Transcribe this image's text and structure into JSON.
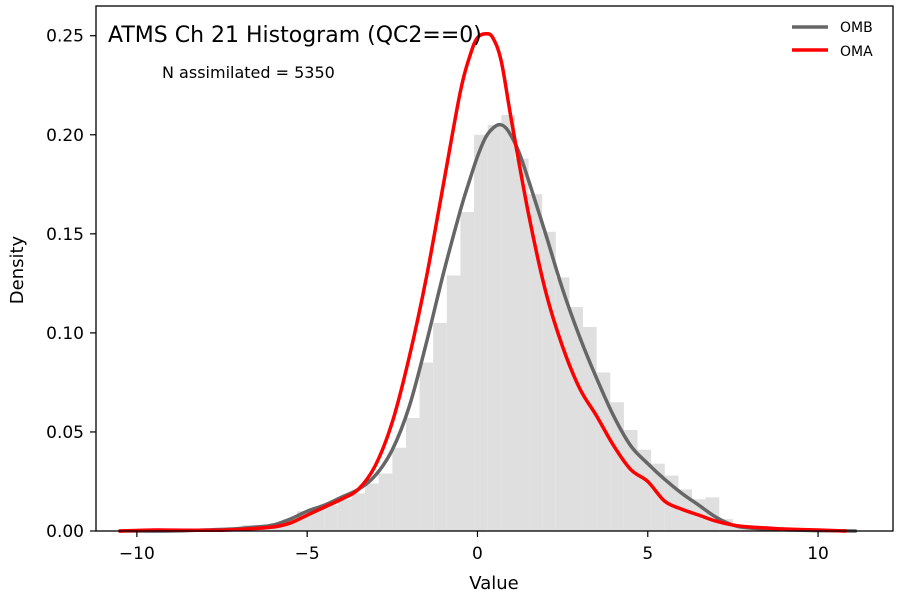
{
  "chart_data": {
    "type": "histogram",
    "title": "ATMS Ch 21 Histogram (QC2==0)",
    "annotation": "N assimilated = 5350",
    "xlabel": "Value",
    "ylabel": "Density",
    "xlim": [
      -11.2,
      12.2
    ],
    "ylim": [
      0,
      0.265
    ],
    "xticks": [
      -10,
      -5,
      0,
      5,
      10
    ],
    "yticks": [
      0.0,
      0.05,
      0.1,
      0.15,
      0.2,
      0.25
    ],
    "ytick_labels": [
      "0.00",
      "0.05",
      "0.10",
      "0.15",
      "0.20",
      "0.25"
    ],
    "legend_position": "top-right",
    "histogram": {
      "color": "#dfdfdf",
      "bins": [
        {
          "x0": -7.3,
          "x1": -6.9,
          "density": 0.001
        },
        {
          "x0": -6.9,
          "x1": -6.5,
          "density": 0.003
        },
        {
          "x0": -6.5,
          "x1": -6.1,
          "density": 0.002
        },
        {
          "x0": -6.1,
          "x1": -5.7,
          "density": 0.004
        },
        {
          "x0": -5.7,
          "x1": -5.3,
          "density": 0.006
        },
        {
          "x0": -5.3,
          "x1": -4.9,
          "density": 0.01
        },
        {
          "x0": -4.9,
          "x1": -4.5,
          "density": 0.011
        },
        {
          "x0": -4.5,
          "x1": -4.1,
          "density": 0.013
        },
        {
          "x0": -4.1,
          "x1": -3.7,
          "density": 0.016
        },
        {
          "x0": -3.7,
          "x1": -3.3,
          "density": 0.019
        },
        {
          "x0": -3.3,
          "x1": -2.9,
          "density": 0.024
        },
        {
          "x0": -2.9,
          "x1": -2.5,
          "density": 0.029
        },
        {
          "x0": -2.5,
          "x1": -2.1,
          "density": 0.042
        },
        {
          "x0": -2.1,
          "x1": -1.7,
          "density": 0.057
        },
        {
          "x0": -1.7,
          "x1": -1.3,
          "density": 0.085
        },
        {
          "x0": -1.3,
          "x1": -0.9,
          "density": 0.105
        },
        {
          "x0": -0.9,
          "x1": -0.5,
          "density": 0.129
        },
        {
          "x0": -0.5,
          "x1": -0.1,
          "density": 0.161
        },
        {
          "x0": -0.1,
          "x1": 0.3,
          "density": 0.2
        },
        {
          "x0": 0.3,
          "x1": 0.7,
          "density": 0.205
        },
        {
          "x0": 0.7,
          "x1": 1.1,
          "density": 0.21
        },
        {
          "x0": 1.1,
          "x1": 1.5,
          "density": 0.188
        },
        {
          "x0": 1.5,
          "x1": 1.9,
          "density": 0.17
        },
        {
          "x0": 1.9,
          "x1": 2.3,
          "density": 0.151
        },
        {
          "x0": 2.3,
          "x1": 2.7,
          "density": 0.128
        },
        {
          "x0": 2.7,
          "x1": 3.1,
          "density": 0.113
        },
        {
          "x0": 3.1,
          "x1": 3.5,
          "density": 0.103
        },
        {
          "x0": 3.5,
          "x1": 3.9,
          "density": 0.08
        },
        {
          "x0": 3.9,
          "x1": 4.3,
          "density": 0.065
        },
        {
          "x0": 4.3,
          "x1": 4.7,
          "density": 0.051
        },
        {
          "x0": 4.7,
          "x1": 5.1,
          "density": 0.041
        },
        {
          "x0": 5.1,
          "x1": 5.5,
          "density": 0.034
        },
        {
          "x0": 5.5,
          "x1": 5.9,
          "density": 0.028
        },
        {
          "x0": 5.9,
          "x1": 6.3,
          "density": 0.021
        },
        {
          "x0": 6.3,
          "x1": 6.7,
          "density": 0.016
        },
        {
          "x0": 6.7,
          "x1": 7.1,
          "density": 0.017
        },
        {
          "x0": 7.1,
          "x1": 7.5,
          "density": 0.006
        },
        {
          "x0": 7.5,
          "x1": 7.9,
          "density": 0.003
        },
        {
          "x0": 7.9,
          "x1": 8.3,
          "density": 0.001
        }
      ]
    },
    "series": [
      {
        "name": "OMB",
        "color": "#666666",
        "x": [
          -10.5,
          -9,
          -8,
          -7.2,
          -6.5,
          -6,
          -5.5,
          -5,
          -4.5,
          -4,
          -3.5,
          -3,
          -2.5,
          -2,
          -1.5,
          -1,
          -0.5,
          -0.25,
          0,
          0.25,
          0.5,
          0.7,
          0.9,
          1.2,
          1.5,
          2,
          2.5,
          3,
          3.5,
          4,
          4.5,
          5,
          5.5,
          6,
          6.5,
          7,
          7.5,
          8,
          9,
          10,
          11.1
        ],
        "y": [
          0.0,
          0.0,
          0.0005,
          0.001,
          0.002,
          0.003,
          0.006,
          0.01,
          0.013,
          0.017,
          0.021,
          0.028,
          0.041,
          0.063,
          0.095,
          0.13,
          0.162,
          0.176,
          0.189,
          0.199,
          0.204,
          0.205,
          0.202,
          0.192,
          0.177,
          0.15,
          0.122,
          0.098,
          0.077,
          0.058,
          0.043,
          0.034,
          0.026,
          0.019,
          0.013,
          0.007,
          0.003,
          0.0015,
          0.0006,
          0.0002,
          0.0
        ]
      },
      {
        "name": "OMA",
        "color": "#ff0000",
        "x": [
          -10.5,
          -9.5,
          -8.5,
          -7.5,
          -6.8,
          -6,
          -5.5,
          -5,
          -4.5,
          -4,
          -3.5,
          -3,
          -2.5,
          -2,
          -1.5,
          -1,
          -0.5,
          -0.2,
          0,
          0.25,
          0.45,
          0.7,
          1,
          1.5,
          2,
          2.5,
          3,
          3.5,
          4,
          4.5,
          5,
          5.5,
          6,
          6.5,
          7,
          7.5,
          8,
          8.5,
          9,
          10,
          10.8
        ],
        "y": [
          0.0,
          0.0005,
          0.0004,
          0.0004,
          0.001,
          0.002,
          0.004,
          0.008,
          0.012,
          0.016,
          0.021,
          0.033,
          0.055,
          0.088,
          0.128,
          0.175,
          0.222,
          0.241,
          0.249,
          0.251,
          0.249,
          0.237,
          0.207,
          0.16,
          0.121,
          0.093,
          0.072,
          0.058,
          0.043,
          0.031,
          0.025,
          0.015,
          0.011,
          0.008,
          0.005,
          0.003,
          0.002,
          0.0015,
          0.001,
          0.0005,
          0.0
        ]
      }
    ]
  }
}
